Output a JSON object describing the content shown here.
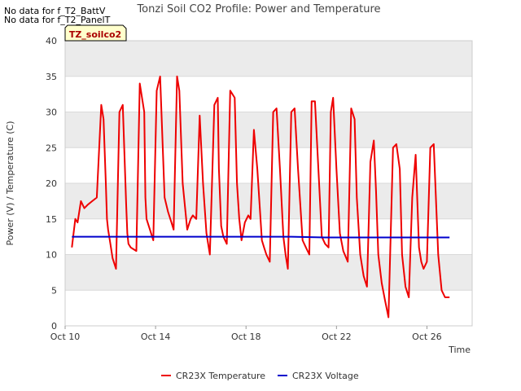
{
  "header": {
    "no_data_lines": [
      "No data for f_T2_BattV",
      "No data for f_T2_PanelT"
    ],
    "site_badge": "TZ_soilco2"
  },
  "colors": {
    "temperature": "#ee0000",
    "voltage": "#0000cc",
    "band": "#ebebeb",
    "grid": "#d9d9d9",
    "badge_bg": "#ffffcc"
  },
  "chart_data": {
    "type": "line",
    "title": "Tonzi Soil CO2 Profile: Power and Temperature",
    "xlabel": "Time",
    "ylabel": "Power (V) / Temperature (C)",
    "ylim": [
      0,
      40
    ],
    "yticks": [
      0,
      5,
      10,
      15,
      20,
      25,
      30,
      35,
      40
    ],
    "xlim_days": [
      0,
      18
    ],
    "xticks": [
      {
        "day": 0,
        "label": "Oct 10"
      },
      {
        "day": 4,
        "label": "Oct 14"
      },
      {
        "day": 8,
        "label": "Oct 18"
      },
      {
        "day": 12,
        "label": "Oct 22"
      },
      {
        "day": 16,
        "label": "Oct 26"
      }
    ],
    "grid": true,
    "legend_position": "bottom",
    "series": [
      {
        "name": "CR23X Temperature",
        "x_days": [
          0.3,
          0.45,
          0.55,
          0.7,
          0.85,
          1.0,
          1.2,
          1.4,
          1.6,
          1.7,
          1.8,
          1.85,
          1.9,
          2.0,
          2.1,
          2.25,
          2.4,
          2.55,
          2.7,
          2.75,
          2.8,
          2.9,
          3.0,
          3.15,
          3.3,
          3.5,
          3.55,
          3.6,
          3.75,
          3.9,
          4.05,
          4.2,
          4.4,
          4.55,
          4.7,
          4.8,
          4.95,
          5.05,
          5.2,
          5.4,
          5.55,
          5.65,
          5.8,
          5.95,
          6.1,
          6.25,
          6.4,
          6.6,
          6.75,
          6.8,
          6.9,
          7.0,
          7.15,
          7.3,
          7.5,
          7.6,
          7.7,
          7.8,
          7.95,
          8.1,
          8.2,
          8.35,
          8.5,
          8.7,
          8.8,
          8.9,
          9.05,
          9.2,
          9.35,
          9.5,
          9.65,
          9.75,
          9.85,
          10.0,
          10.15,
          10.3,
          10.5,
          10.65,
          10.8,
          10.9,
          11.05,
          11.2,
          11.35,
          11.5,
          11.65,
          11.75,
          11.85,
          12.0,
          12.15,
          12.3,
          12.5,
          12.65,
          12.8,
          12.9,
          13.05,
          13.2,
          13.35,
          13.5,
          13.65,
          13.75,
          13.85,
          14.0,
          14.15,
          14.3,
          14.5,
          14.65,
          14.8,
          14.9,
          15.05,
          15.2,
          15.35,
          15.5,
          15.65,
          15.75,
          15.85,
          16.0,
          16.15,
          16.3,
          16.5,
          16.65,
          16.8,
          16.9,
          17.0
        ],
        "y": [
          11.0,
          15.0,
          14.5,
          17.5,
          16.5,
          17.0,
          17.5,
          18.0,
          31.0,
          29.0,
          20.0,
          15.0,
          13.5,
          11.5,
          9.5,
          8.0,
          30.0,
          31.0,
          17.0,
          13.0,
          11.5,
          11.0,
          10.8,
          10.5,
          34.0,
          30.0,
          18.0,
          15.0,
          13.5,
          12.0,
          33.0,
          35.0,
          18.0,
          16.0,
          14.5,
          13.5,
          35.0,
          33.0,
          20.0,
          13.5,
          15.0,
          15.5,
          15.0,
          29.5,
          20.0,
          13.0,
          10.0,
          31.0,
          32.0,
          22.0,
          14.0,
          12.5,
          11.5,
          33.0,
          32.0,
          20.0,
          15.0,
          12.0,
          14.5,
          15.5,
          15.0,
          27.5,
          22.0,
          12.0,
          11.0,
          10.0,
          9.0,
          30.0,
          30.5,
          22.0,
          12.5,
          10.0,
          8.0,
          30.0,
          30.5,
          22.0,
          12.0,
          11.0,
          10.0,
          31.5,
          31.5,
          22.0,
          12.5,
          11.5,
          11.0,
          30.0,
          32.0,
          22.0,
          13.0,
          10.5,
          9.0,
          30.5,
          29.0,
          18.0,
          10.0,
          7.0,
          5.5,
          23.0,
          26.0,
          19.0,
          10.0,
          6.0,
          3.5,
          1.2,
          25.0,
          25.5,
          22.0,
          10.0,
          5.5,
          4.0,
          18.0,
          24.0,
          11.0,
          9.0,
          8.0,
          9.0,
          25.0,
          25.5,
          10.0,
          5.0,
          4.0,
          4.0,
          4.0
        ],
        "color": "#ee0000"
      },
      {
        "name": "CR23X Voltage",
        "x_days": [
          0.3,
          2.0,
          4.0,
          6.0,
          8.0,
          10.0,
          11.5,
          13.0,
          14.5,
          15.5,
          16.5,
          17.0
        ],
        "y": [
          12.5,
          12.5,
          12.5,
          12.5,
          12.5,
          12.5,
          12.4,
          12.4,
          12.4,
          12.4,
          12.4,
          12.4
        ],
        "color": "#0000cc"
      }
    ]
  }
}
